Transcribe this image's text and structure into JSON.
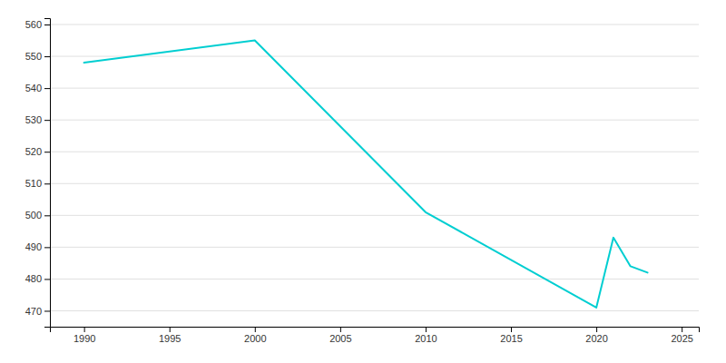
{
  "chart_data": {
    "type": "line",
    "x": [
      1990,
      2000,
      2010,
      2020,
      2021,
      2022,
      2023
    ],
    "values": [
      548,
      555,
      501,
      471,
      493,
      484,
      482
    ],
    "color": "#00CED1",
    "xlim": [
      1988,
      2026
    ],
    "xticks": [
      1990,
      1995,
      2000,
      2005,
      2010,
      2015,
      2020,
      2025
    ],
    "ylim": [
      465,
      562
    ],
    "yticks": [
      470,
      480,
      490,
      500,
      510,
      520,
      530,
      540,
      550,
      560
    ],
    "grid": true
  }
}
